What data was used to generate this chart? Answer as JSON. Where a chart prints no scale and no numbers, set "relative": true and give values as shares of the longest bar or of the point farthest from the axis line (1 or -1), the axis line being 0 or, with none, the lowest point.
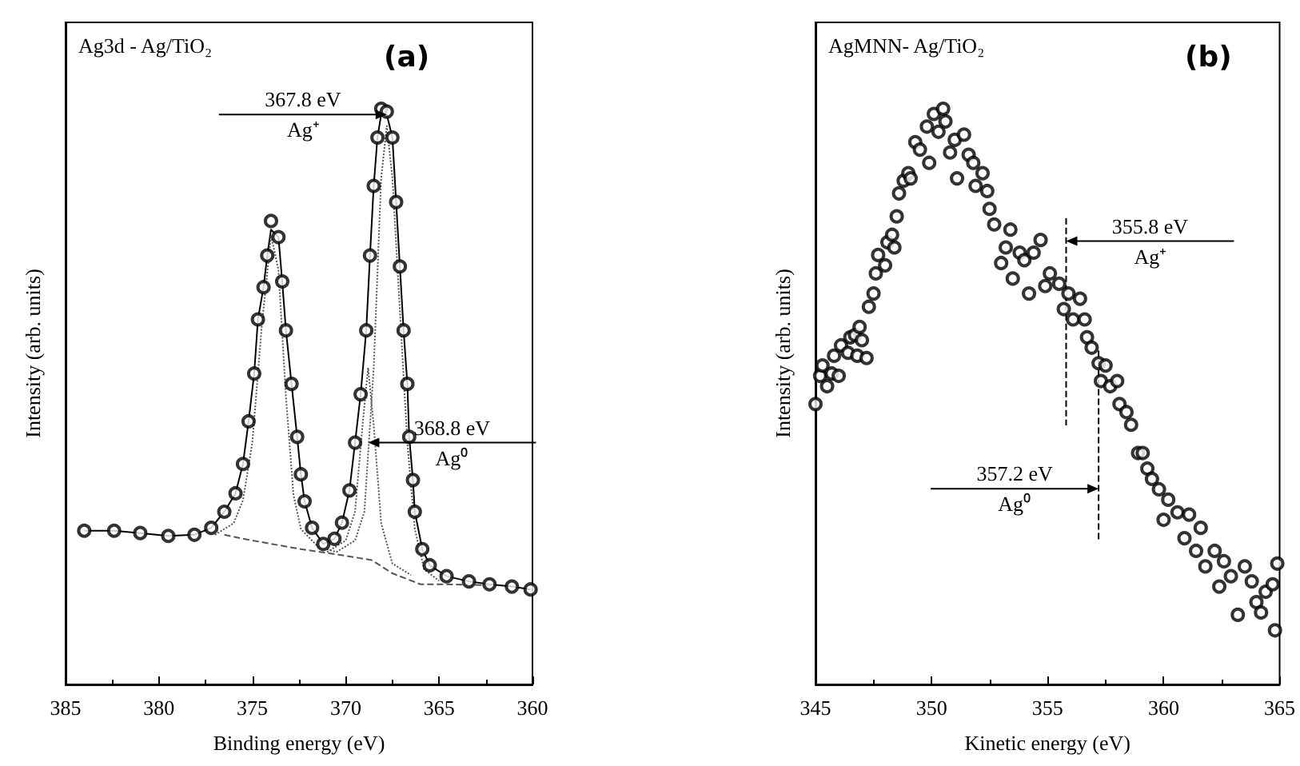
{
  "chart_data": [
    {
      "type": "scatter",
      "title": "(a)",
      "subtitle": "Ag3d - Ag/TiO₂",
      "xlabel": "Binding energy (eV)",
      "ylabel": "Intensity (arb. units)",
      "relative": true,
      "xlim": [
        385,
        360
      ],
      "xticks": [
        385,
        380,
        375,
        370,
        365,
        360
      ],
      "series": [
        {
          "marker": "circle",
          "color": "#000000",
          "x": [
            384.0,
            382.4,
            381.0,
            379.5,
            378.1,
            377.2,
            376.5,
            375.9,
            375.5,
            375.2,
            374.9,
            374.7,
            374.4,
            374.2,
            374.0,
            373.6,
            373.4,
            373.2,
            372.9,
            372.6,
            372.4,
            372.2,
            371.8,
            371.2,
            370.6,
            370.2,
            369.8,
            369.5,
            369.2,
            368.9,
            368.7,
            368.5,
            368.3,
            368.1,
            367.8,
            367.5,
            367.3,
            367.1,
            366.9,
            366.7,
            366.6,
            366.4,
            366.3,
            365.9,
            365.5,
            364.6,
            363.4,
            362.3,
            361.1,
            360.1
          ],
          "values": [
            0.267,
            0.267,
            0.263,
            0.258,
            0.26,
            0.272,
            0.3,
            0.332,
            0.383,
            0.457,
            0.54,
            0.634,
            0.69,
            0.745,
            0.805,
            0.777,
            0.7,
            0.615,
            0.522,
            0.43,
            0.365,
            0.318,
            0.272,
            0.244,
            0.253,
            0.281,
            0.337,
            0.42,
            0.504,
            0.615,
            0.745,
            0.866,
            0.95,
            1.0,
            0.995,
            0.95,
            0.838,
            0.726,
            0.615,
            0.522,
            0.43,
            0.355,
            0.3,
            0.235,
            0.207,
            0.188,
            0.179,
            0.174,
            0.17,
            0.165
          ]
        },
        {
          "type": "line",
          "color": "#000000",
          "line_style": "solid",
          "x": [
            384.0,
            382.4,
            381.0,
            379.5,
            378.1,
            377.2,
            376.5,
            375.9,
            375.5,
            375.2,
            374.9,
            374.7,
            374.4,
            374.2,
            374.0,
            373.6,
            373.4,
            373.2,
            372.9,
            372.6,
            372.4,
            372.2,
            371.8,
            371.2,
            370.6,
            370.2,
            369.8,
            369.5,
            369.2,
            368.9,
            368.7,
            368.5,
            368.3,
            368.1,
            367.8,
            367.5,
            367.3,
            367.1,
            366.9,
            366.7,
            366.6,
            366.4,
            366.3,
            365.9,
            365.5,
            364.6,
            363.4,
            362.3,
            361.1,
            360.1
          ],
          "values": [
            0.267,
            0.267,
            0.263,
            0.258,
            0.26,
            0.272,
            0.3,
            0.332,
            0.383,
            0.457,
            0.54,
            0.634,
            0.69,
            0.745,
            0.79,
            0.777,
            0.7,
            0.615,
            0.522,
            0.43,
            0.365,
            0.318,
            0.272,
            0.244,
            0.253,
            0.281,
            0.337,
            0.42,
            0.504,
            0.615,
            0.745,
            0.866,
            0.95,
            0.99,
            0.99,
            0.95,
            0.838,
            0.726,
            0.615,
            0.522,
            0.43,
            0.355,
            0.3,
            0.235,
            0.207,
            0.188,
            0.179,
            0.174,
            0.17,
            0.165
          ]
        },
        {
          "type": "line",
          "color": "#555555",
          "line_style": "dotted",
          "x": [
            377.0,
            376.0,
            375.5,
            375.0,
            374.5,
            374.0,
            373.6,
            373.2,
            372.8,
            372.4,
            371.5,
            370.5
          ],
          "values": [
            0.26,
            0.28,
            0.32,
            0.42,
            0.62,
            0.78,
            0.72,
            0.5,
            0.33,
            0.27,
            0.24,
            0.23
          ]
        },
        {
          "type": "line",
          "color": "#555555",
          "line_style": "dotted",
          "x": [
            371.0,
            370.0,
            369.5,
            369.1,
            368.8,
            368.5,
            368.1,
            367.5,
            366.5
          ],
          "values": [
            0.23,
            0.25,
            0.3,
            0.45,
            0.55,
            0.45,
            0.28,
            0.21,
            0.19
          ]
        },
        {
          "type": "line",
          "color": "#555555",
          "line_style": "dotted",
          "x": [
            370.5,
            369.5,
            369.0,
            368.5,
            368.1,
            367.8,
            367.5,
            367.1,
            366.7,
            366.3,
            365.8,
            365.0
          ],
          "values": [
            0.23,
            0.25,
            0.3,
            0.55,
            0.88,
            0.97,
            0.88,
            0.65,
            0.42,
            0.27,
            0.2,
            0.18
          ]
        },
        {
          "type": "line",
          "color": "#555555",
          "line_style": "dashed",
          "x": [
            376.5,
            375.5,
            372.4,
            370.3,
            368.6,
            367.5,
            366.0,
            364.6,
            362.0
          ],
          "values": [
            0.26,
            0.253,
            0.235,
            0.225,
            0.216,
            0.193,
            0.174,
            0.174,
            0.172
          ]
        }
      ],
      "annotations": [
        {
          "text": "367.8 eV",
          "x": 367.8,
          "y": 0.99
        },
        "Ag⁺",
        {
          "text": "368.8 eV",
          "x": 368.8,
          "y": 0.42
        },
        "Ag⁰"
      ]
    },
    {
      "type": "scatter",
      "title": "(b)",
      "subtitle": "AgMNN- Ag/TiO₂",
      "xlabel": "Kinetic energy (eV)",
      "ylabel": "Intensity (arb. units)",
      "relative": true,
      "xlim": [
        345,
        365
      ],
      "xticks": [
        345,
        350,
        355,
        360,
        365
      ],
      "series": [
        {
          "marker": "circle",
          "color": "#000000",
          "x": [
            345.0,
            345.2,
            345.3,
            345.5,
            345.7,
            345.8,
            346.0,
            346.1,
            346.4,
            346.5,
            346.7,
            346.8,
            346.9,
            347.0,
            347.2,
            347.3,
            347.5,
            347.6,
            347.7,
            348.0,
            348.1,
            348.3,
            348.4,
            348.5,
            348.6,
            348.8,
            349.0,
            349.1,
            349.3,
            349.5,
            349.8,
            349.9,
            350.1,
            350.3,
            350.5,
            350.6,
            350.8,
            351.0,
            351.1,
            351.4,
            351.6,
            351.8,
            351.9,
            352.2,
            352.4,
            352.5,
            352.7,
            353.0,
            353.2,
            353.4,
            353.5,
            353.8,
            354.0,
            354.2,
            354.4,
            354.7,
            354.9,
            355.1,
            355.5,
            355.7,
            355.9,
            356.1,
            356.4,
            356.6,
            356.7,
            356.9,
            357.2,
            357.3,
            357.5,
            357.7,
            358.0,
            358.1,
            358.4,
            358.6,
            358.9,
            359.1,
            359.3,
            359.5,
            359.8,
            360.0,
            360.2,
            360.6,
            360.9,
            361.1,
            361.4,
            361.6,
            361.8,
            362.2,
            362.4,
            362.6,
            362.9,
            363.2,
            363.5,
            363.8,
            364.0,
            364.2,
            364.4,
            364.7,
            364.8,
            364.9
          ],
          "values": [
            0.487,
            0.536,
            0.554,
            0.518,
            0.54,
            0.571,
            0.536,
            0.589,
            0.576,
            0.603,
            0.607,
            0.571,
            0.621,
            0.598,
            0.567,
            0.656,
            0.679,
            0.714,
            0.746,
            0.728,
            0.768,
            0.781,
            0.759,
            0.813,
            0.853,
            0.875,
            0.888,
            0.879,
            0.942,
            0.929,
            0.969,
            0.906,
            0.991,
            0.96,
            1.0,
            0.978,
            0.924,
            0.946,
            0.879,
            0.955,
            0.92,
            0.906,
            0.866,
            0.888,
            0.857,
            0.826,
            0.799,
            0.732,
            0.759,
            0.79,
            0.705,
            0.75,
            0.737,
            0.679,
            0.75,
            0.772,
            0.692,
            0.714,
            0.696,
            0.652,
            0.679,
            0.634,
            0.67,
            0.634,
            0.603,
            0.585,
            0.558,
            0.527,
            0.554,
            0.518,
            0.527,
            0.487,
            0.473,
            0.451,
            0.402,
            0.402,
            0.375,
            0.357,
            0.339,
            0.286,
            0.321,
            0.299,
            0.254,
            0.295,
            0.232,
            0.272,
            0.205,
            0.232,
            0.17,
            0.214,
            0.188,
            0.121,
            0.205,
            0.179,
            0.143,
            0.125,
            0.161,
            0.174,
            0.094,
            0.21
          ]
        },
        {
          "type": "line",
          "color": "#000000",
          "line_style": "dashed",
          "x": [
            355.8,
            355.8
          ],
          "values": [
            0.81,
            0.45
          ]
        },
        {
          "type": "line",
          "color": "#000000",
          "line_style": "dashed",
          "x": [
            357.2,
            357.2
          ],
          "values": [
            0.58,
            0.25
          ]
        }
      ],
      "annotations": [
        {
          "text": "355.8 eV",
          "x": 355.8,
          "y": 0.77
        },
        "Ag⁺",
        {
          "text": "357.2 eV",
          "x": 357.2,
          "y": 0.34
        },
        "Ag⁰"
      ]
    }
  ]
}
